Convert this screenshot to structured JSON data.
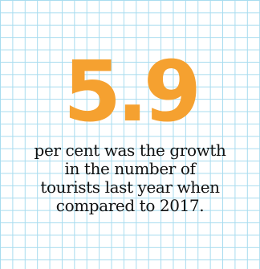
{
  "stat": {
    "value": "5.9",
    "caption_lines": [
      "per cent was the growth",
      "in the number of",
      "tourists last year when",
      "compared to 2017."
    ]
  },
  "colors": {
    "accent": "#f5a130",
    "grid": "#a8dcef",
    "text": "#111111",
    "background": "#ffffff"
  }
}
